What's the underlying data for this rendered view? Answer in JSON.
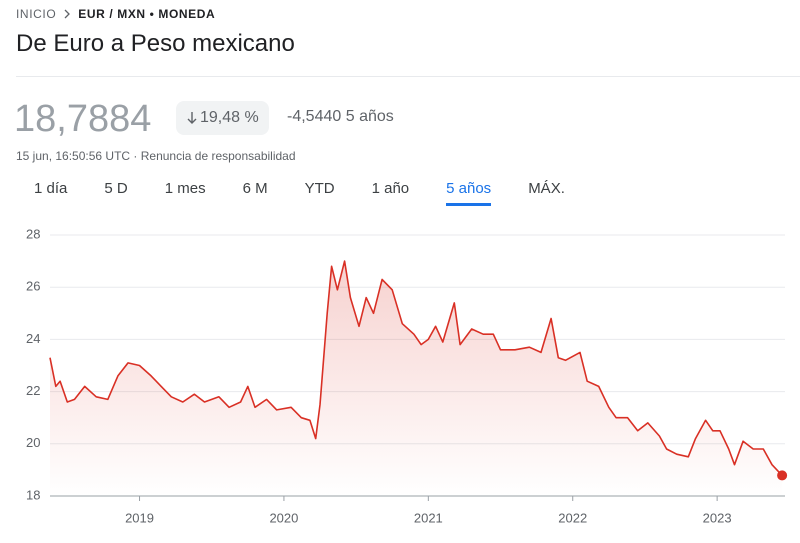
{
  "header": {
    "breadcrumb": [
      "INICIO",
      "EUR / MXN • MONEDA"
    ],
    "title": "De Euro a Peso mexicano"
  },
  "quote": {
    "price": "18,7884",
    "change_percent": "19,48 %",
    "change_abs": "-4,5440",
    "period": "5 años",
    "timestamp": "15 jun, 16:50:56 UTC · Renuncia de responsabilidad"
  },
  "tabs": {
    "items": [
      "1 día",
      "5 D",
      "1 mes",
      "6 M",
      "YTD",
      "1 año",
      "5 años",
      "MÁX."
    ],
    "active": 6
  },
  "chart_data": {
    "type": "line",
    "color": "#d93025",
    "grid": true,
    "xlim": [
      2018.38,
      2023.47
    ],
    "xticks": [
      2019,
      2020,
      2021,
      2022,
      2023
    ],
    "ylim": [
      18,
      28
    ],
    "yticks": [
      18,
      20,
      22,
      24,
      26,
      28
    ],
    "series": [
      {
        "name": "EUR / MXN",
        "color": "#d93025",
        "x": [
          2018.38,
          2018.42,
          2018.45,
          2018.5,
          2018.55,
          2018.62,
          2018.7,
          2018.78,
          2018.85,
          2018.92,
          2019.0,
          2019.08,
          2019.15,
          2019.22,
          2019.3,
          2019.38,
          2019.45,
          2019.55,
          2019.62,
          2019.7,
          2019.75,
          2019.8,
          2019.88,
          2019.95,
          2020.05,
          2020.12,
          2020.18,
          2020.22,
          2020.25,
          2020.3,
          2020.33,
          2020.37,
          2020.42,
          2020.46,
          2020.52,
          2020.57,
          2020.62,
          2020.68,
          2020.75,
          2020.82,
          2020.9,
          2020.95,
          2021.0,
          2021.05,
          2021.1,
          2021.18,
          2021.22,
          2021.3,
          2021.38,
          2021.45,
          2021.5,
          2021.6,
          2021.7,
          2021.78,
          2021.85,
          2021.9,
          2021.95,
          2022.05,
          2022.1,
          2022.18,
          2022.25,
          2022.3,
          2022.38,
          2022.45,
          2022.52,
          2022.6,
          2022.65,
          2022.72,
          2022.8,
          2022.85,
          2022.92,
          2022.97,
          2023.02,
          2023.08,
          2023.12,
          2023.18,
          2023.25,
          2023.32,
          2023.38,
          2023.45
        ],
        "values": [
          23.3,
          22.2,
          22.4,
          21.6,
          21.7,
          22.2,
          21.8,
          21.7,
          22.6,
          23.1,
          23.0,
          22.6,
          22.2,
          21.8,
          21.6,
          21.9,
          21.6,
          21.8,
          21.4,
          21.6,
          22.2,
          21.4,
          21.7,
          21.3,
          21.4,
          21.0,
          20.9,
          20.2,
          21.5,
          25.0,
          26.8,
          25.9,
          27.0,
          25.6,
          24.5,
          25.6,
          25.0,
          26.3,
          25.9,
          24.6,
          24.2,
          23.8,
          24.0,
          24.5,
          23.9,
          25.4,
          23.8,
          24.4,
          24.2,
          24.2,
          23.6,
          23.6,
          23.7,
          23.5,
          24.8,
          23.3,
          23.2,
          23.5,
          22.4,
          22.2,
          21.4,
          21.0,
          21.0,
          20.5,
          20.8,
          20.3,
          19.8,
          19.6,
          19.5,
          20.2,
          20.9,
          20.5,
          20.5,
          19.8,
          19.2,
          20.1,
          19.8,
          19.8,
          19.2,
          18.7884
        ]
      }
    ]
  }
}
